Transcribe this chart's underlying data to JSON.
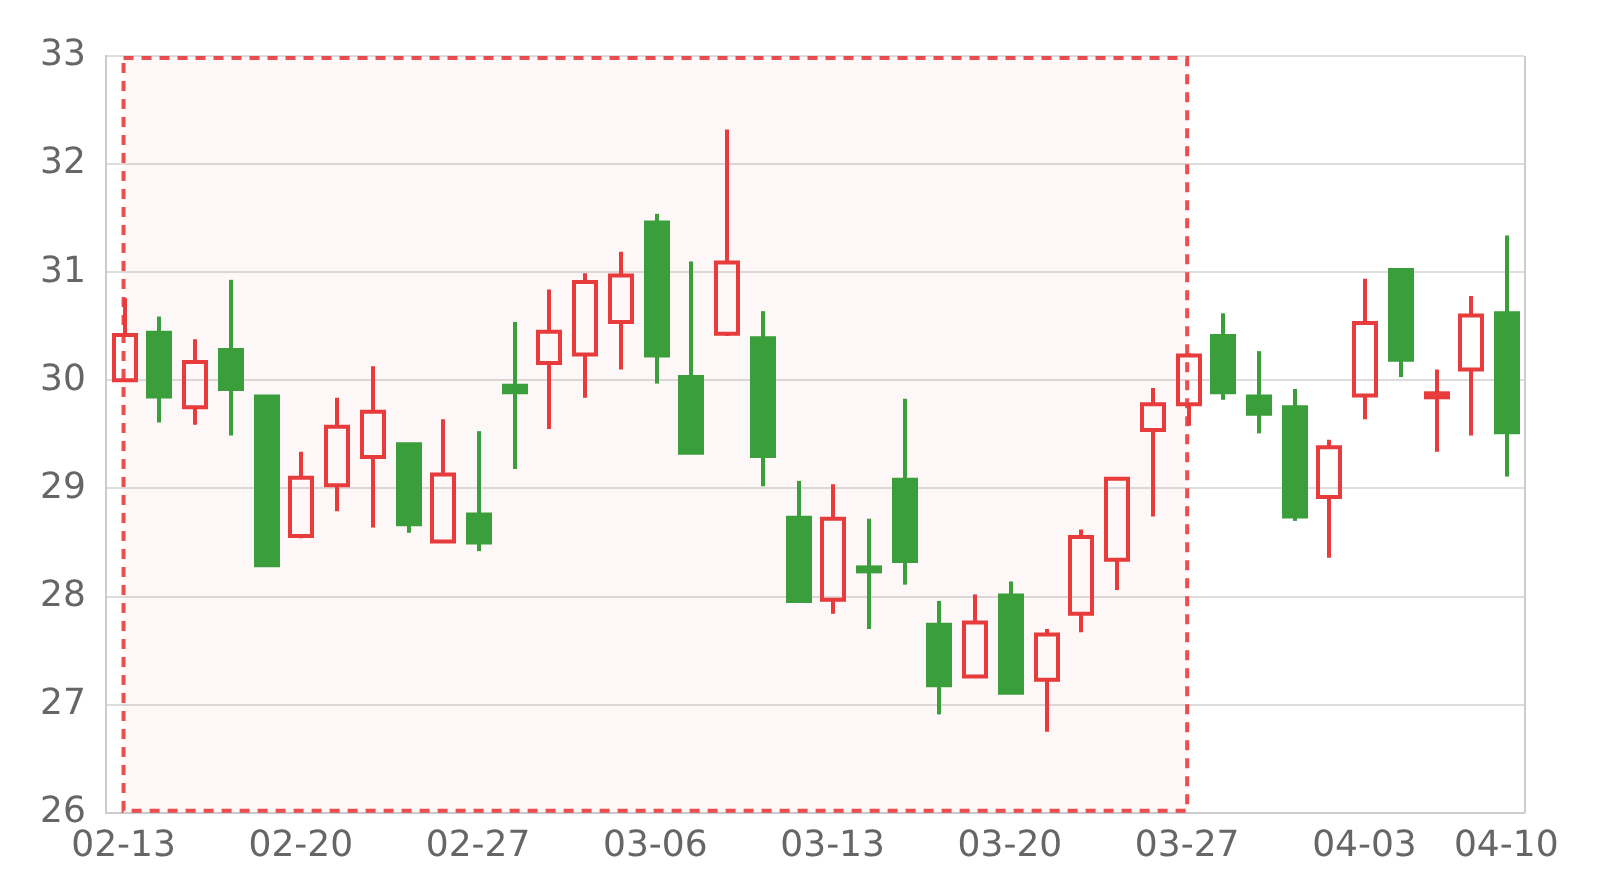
{
  "chart_data": {
    "type": "candlestick",
    "categories": [
      "02-13",
      null,
      null,
      null,
      null,
      "02-20",
      null,
      null,
      null,
      null,
      "02-27",
      null,
      null,
      null,
      null,
      "03-06",
      null,
      null,
      null,
      null,
      "03-13",
      null,
      null,
      null,
      null,
      "03-20",
      null,
      null,
      null,
      null,
      "03-27",
      null,
      null,
      null,
      null,
      "04-03",
      null,
      null,
      null,
      "04-10"
    ],
    "ohlc": [
      [
        30.0,
        30.76,
        29.99,
        30.42
      ],
      [
        30.44,
        30.59,
        29.61,
        29.85
      ],
      [
        29.75,
        30.38,
        29.59,
        30.17
      ],
      [
        30.28,
        30.93,
        29.49,
        29.92
      ],
      [
        29.85,
        29.85,
        28.29,
        28.29
      ],
      [
        28.56,
        29.34,
        28.54,
        29.1
      ],
      [
        29.03,
        29.84,
        28.79,
        29.57
      ],
      [
        29.29,
        30.13,
        28.64,
        29.71
      ],
      [
        29.41,
        29.41,
        28.59,
        28.67
      ],
      [
        28.51,
        29.64,
        28.51,
        29.13
      ],
      [
        28.76,
        29.53,
        28.42,
        28.5
      ],
      [
        29.95,
        30.54,
        29.18,
        29.89
      ],
      [
        30.16,
        30.84,
        29.55,
        30.45
      ],
      [
        30.24,
        30.99,
        29.84,
        30.91
      ],
      [
        30.54,
        31.19,
        30.1,
        30.97
      ],
      [
        31.46,
        31.54,
        29.97,
        30.23
      ],
      [
        30.03,
        31.1,
        29.33,
        29.33
      ],
      [
        30.43,
        32.32,
        30.41,
        31.09
      ],
      [
        30.39,
        30.64,
        29.02,
        29.3
      ],
      [
        28.73,
        29.07,
        27.96,
        27.96
      ],
      [
        27.97,
        29.04,
        27.84,
        28.72
      ],
      [
        28.27,
        28.72,
        27.7,
        28.25
      ],
      [
        29.08,
        29.83,
        28.11,
        28.33
      ],
      [
        27.74,
        27.96,
        26.91,
        27.18
      ],
      [
        27.26,
        28.02,
        27.26,
        27.76
      ],
      [
        28.01,
        28.14,
        27.11,
        27.11
      ],
      [
        27.23,
        27.7,
        26.75,
        27.65
      ],
      [
        27.84,
        28.62,
        27.67,
        28.55
      ],
      [
        28.34,
        29.09,
        28.06,
        29.09
      ],
      [
        29.54,
        29.93,
        28.74,
        29.78
      ],
      [
        29.78,
        30.25,
        29.58,
        30.23
      ],
      [
        30.41,
        30.62,
        29.82,
        29.89
      ],
      [
        29.85,
        30.27,
        29.51,
        29.69
      ],
      [
        29.75,
        29.92,
        28.7,
        28.74
      ],
      [
        28.92,
        29.45,
        28.36,
        29.38
      ],
      [
        29.86,
        30.94,
        29.64,
        30.53
      ],
      [
        31.02,
        31.02,
        30.03,
        30.19
      ],
      [
        29.86,
        30.1,
        29.34,
        29.88
      ],
      [
        30.1,
        30.78,
        29.49,
        30.6
      ],
      [
        30.62,
        31.34,
        29.11,
        29.52
      ]
    ],
    "colors": [
      "#e83b3b",
      "#3a9f3a",
      "#e83b3b",
      "#3a9f3a",
      "#3a9f3a",
      "#e83b3b",
      "#e83b3b",
      "#e83b3b",
      "#3a9f3a",
      "#e83b3b",
      "#3a9f3a",
      "#3a9f3a",
      "#e83b3b",
      "#e83b3b",
      "#e83b3b",
      "#3a9f3a",
      "#3a9f3a",
      "#e83b3b",
      "#3a9f3a",
      "#3a9f3a",
      "#e83b3b",
      "#3a9f3a",
      "#3a9f3a",
      "#3a9f3a",
      "#e83b3b",
      "#3a9f3a",
      "#e83b3b",
      "#e83b3b",
      "#e83b3b",
      "#e83b3b",
      "#e83b3b",
      "#3a9f3a",
      "#3a9f3a",
      "#3a9f3a",
      "#e83b3b",
      "#e83b3b",
      "#3a9f3a",
      "#e83b3b",
      "#e83b3b",
      "#3a9f3a"
    ],
    "ylim": [
      26,
      33
    ],
    "yticks": [
      26,
      27,
      28,
      29,
      30,
      31,
      32,
      33
    ],
    "grid": "y",
    "bands": [
      {
        "axis": "x",
        "from": "02-13",
        "to": "03-27",
        "color": "#e83b3b"
      }
    ]
  }
}
